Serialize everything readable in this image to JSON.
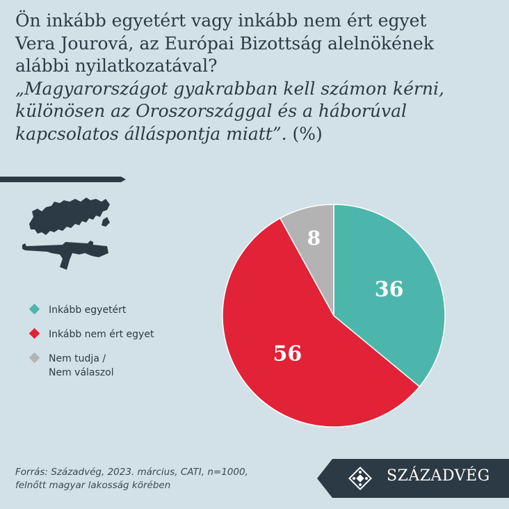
{
  "title": {
    "line1": "Ön inkább egyetért vagy inkább nem ért egyet",
    "line2": "Vera Jourová, az Európai Bizottság alelnökének",
    "line3": "alábbi nyilatkozatával?",
    "quote1": "„Magyarországot gyakrabban kell számon kérni,",
    "quote2": "különösen az Oroszországgal és a háborúval",
    "quote3": "kapcsolatos álláspontja miatt”.",
    "unit": " (%)"
  },
  "icons": {
    "map": "russia-map-icon",
    "gun": "rifle-icon"
  },
  "colors": {
    "agree": "#4db6ac",
    "disagree": "#e12237",
    "dontknow": "#b3b3b3",
    "background": "#d2e1e7",
    "dark": "#2b3a44"
  },
  "chart_data": {
    "type": "pie",
    "title": "",
    "slices": [
      {
        "label": "Inkább egyetért",
        "value": 36,
        "color": "#4db6ac"
      },
      {
        "label": "Inkább nem ért egyet",
        "value": 56,
        "color": "#e12237"
      },
      {
        "label": "Nem tudja /\nNem válaszol",
        "value": 8,
        "color": "#b3b3b3"
      }
    ],
    "legend_position": "left"
  },
  "legend": [
    {
      "label": "Inkább egyetért"
    },
    {
      "label": "Inkább nem ért egyet"
    },
    {
      "label": "Nem tudja /\nNem válaszol"
    }
  ],
  "source": "Forrás: Századvég, 2023. március, CATI, n=1000,\nfelnőtt magyar lakosság körében",
  "logo": {
    "text": "SZÁZADVÉG"
  }
}
